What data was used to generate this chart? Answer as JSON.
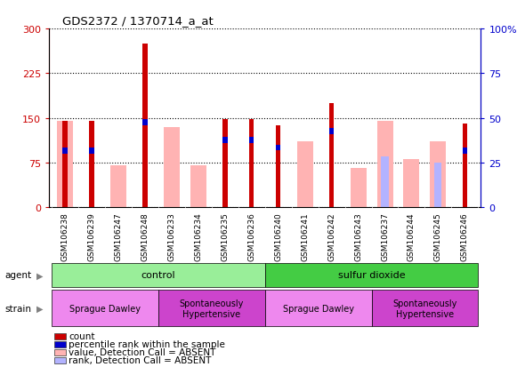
{
  "title": "GDS2372 / 1370714_a_at",
  "samples": [
    "GSM106238",
    "GSM106239",
    "GSM106247",
    "GSM106248",
    "GSM106233",
    "GSM106234",
    "GSM106235",
    "GSM106236",
    "GSM106240",
    "GSM106241",
    "GSM106242",
    "GSM106243",
    "GSM106237",
    "GSM106244",
    "GSM106245",
    "GSM106246"
  ],
  "count_values": [
    145,
    145,
    0,
    275,
    0,
    0,
    148,
    148,
    138,
    0,
    175,
    0,
    0,
    0,
    0,
    140
  ],
  "rank_values": [
    100,
    100,
    0,
    148,
    0,
    0,
    118,
    118,
    105,
    0,
    133,
    0,
    0,
    0,
    0,
    100
  ],
  "pink_values": [
    145,
    0,
    70,
    0,
    135,
    70,
    0,
    0,
    0,
    110,
    0,
    65,
    145,
    80,
    110,
    0
  ],
  "lightblue_values": [
    0,
    0,
    0,
    0,
    0,
    0,
    0,
    0,
    0,
    0,
    0,
    0,
    85,
    0,
    75,
    0
  ],
  "blue_heights": [
    10,
    10,
    0,
    10,
    0,
    0,
    10,
    10,
    10,
    0,
    10,
    0,
    0,
    0,
    0,
    10
  ],
  "blue_bottoms": [
    90,
    90,
    0,
    138,
    0,
    0,
    108,
    108,
    95,
    0,
    123,
    0,
    0,
    0,
    0,
    90
  ],
  "ylim_left": [
    0,
    300
  ],
  "ylim_right": [
    0,
    100
  ],
  "yticks_left": [
    0,
    75,
    150,
    225,
    300
  ],
  "yticks_right": [
    0,
    25,
    50,
    75,
    100
  ],
  "color_count": "#cc0000",
  "color_rank": "#0000cc",
  "color_pink": "#ffb3b3",
  "color_lightblue": "#b3b3ff",
  "color_tickbg": "#cccccc",
  "agent_control_color": "#99ee99",
  "agent_so2_color": "#44cc44",
  "strain_sd_color": "#ee88ee",
  "strain_sh_color": "#cc44cc",
  "legend_items": [
    {
      "label": "count",
      "color": "#cc0000"
    },
    {
      "label": "percentile rank within the sample",
      "color": "#0000cc"
    },
    {
      "label": "value, Detection Call = ABSENT",
      "color": "#ffb3b3"
    },
    {
      "label": "rank, Detection Call = ABSENT",
      "color": "#b3b3ff"
    }
  ]
}
